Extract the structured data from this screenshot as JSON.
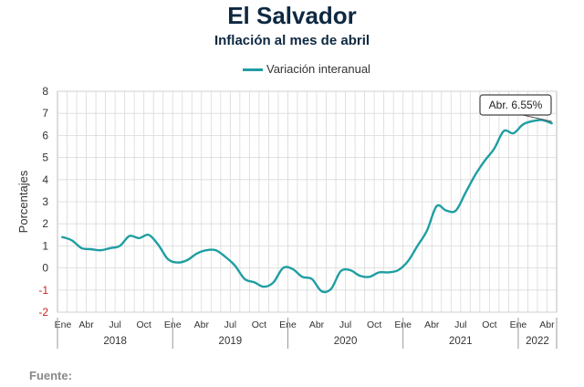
{
  "header": {
    "title": "El Salvador",
    "subtitle": "Inflación al mes de abril"
  },
  "footer": {
    "source_label": "Fuente:"
  },
  "chart_data": {
    "type": "line",
    "title": "El Salvador",
    "subtitle": "Inflación al mes de abril",
    "ylabel": "Porcentajes",
    "ylim": [
      -2,
      8
    ],
    "yticks": [
      -2,
      -1,
      0,
      1,
      2,
      3,
      4,
      5,
      6,
      7,
      8
    ],
    "grid": true,
    "legend_position": "top-center",
    "month_tick_labels": [
      "Ene",
      "Abr",
      "Jul",
      "Oct",
      "Ene",
      "Abr",
      "Jul",
      "Oct",
      "Ene",
      "Abr",
      "Jul",
      "Oct",
      "Ene",
      "Abr",
      "Jul",
      "Oct",
      "Ene",
      "Abr"
    ],
    "years": [
      "2018",
      "2019",
      "2020",
      "2021",
      "2022"
    ],
    "annotation": {
      "text": "Abr. 6.55%",
      "point_index": 51
    },
    "series": [
      {
        "name": "Variación interanual",
        "color": "#1f9ea3",
        "values": [
          1.4,
          1.25,
          0.9,
          0.85,
          0.8,
          0.9,
          1.0,
          1.45,
          1.35,
          1.5,
          1.05,
          0.4,
          0.25,
          0.35,
          0.65,
          0.8,
          0.8,
          0.5,
          0.1,
          -0.5,
          -0.65,
          -0.85,
          -0.65,
          0.0,
          -0.05,
          -0.4,
          -0.5,
          -1.05,
          -0.95,
          -0.15,
          -0.1,
          -0.35,
          -0.4,
          -0.2,
          -0.2,
          -0.1,
          0.3,
          1.0,
          1.7,
          2.8,
          2.6,
          2.6,
          3.4,
          4.2,
          4.85,
          5.4,
          6.2,
          6.1,
          6.5,
          6.65,
          6.7,
          6.55
        ]
      }
    ]
  }
}
